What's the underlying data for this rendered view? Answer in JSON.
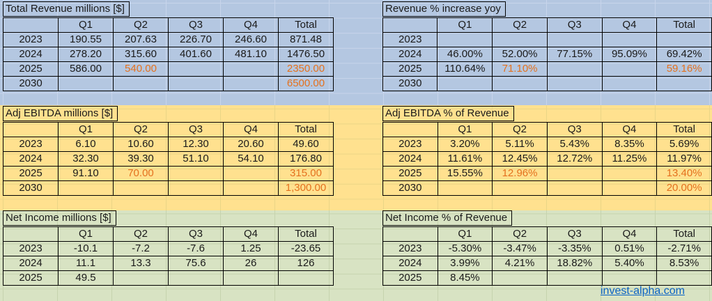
{
  "columns": [
    "",
    "Q1",
    "Q2",
    "Q3",
    "Q4",
    "Total"
  ],
  "colors": {
    "band-blue": "#B4C7E1",
    "grid-blue": "#C8D5EB",
    "band-yellow": "#FFE18F",
    "grid-yellow": "#EAD586",
    "band-green": "#D8E3C3",
    "grid-green": "#C6D3AE",
    "orange": "#E4711E",
    "ink": "#1A1A1A",
    "link": "#0B63C5"
  },
  "link": {
    "text": "invest-alpha.com"
  },
  "tables": [
    {
      "title": "Total Revenue millions [$]",
      "rows": [
        {
          "label": "2023",
          "values": [
            "190.55",
            "207.63",
            "226.70",
            "246.60",
            "871.48"
          ],
          "orange": []
        },
        {
          "label": "2024",
          "values": [
            "278.20",
            "315.60",
            "401.60",
            "481.10",
            "1476.50"
          ],
          "orange": []
        },
        {
          "label": "2025",
          "values": [
            "586.00",
            "540.00",
            "",
            "",
            "2350.00"
          ],
          "orange": [
            1,
            4
          ]
        },
        {
          "label": "2030",
          "values": [
            "",
            "",
            "",
            "",
            "6500.00"
          ],
          "orange": [
            4
          ]
        }
      ]
    },
    {
      "title": "Revenue % increase yoy",
      "rows": [
        {
          "label": "2023",
          "values": [
            "",
            "",
            "",
            "",
            ""
          ],
          "orange": []
        },
        {
          "label": "2024",
          "values": [
            "46.00%",
            "52.00%",
            "77.15%",
            "95.09%",
            "69.42%"
          ],
          "orange": []
        },
        {
          "label": "2025",
          "values": [
            "110.64%",
            "71.10%",
            "",
            "",
            "59.16%"
          ],
          "orange": [
            1,
            4
          ]
        },
        {
          "label": "2030",
          "values": [
            "",
            "",
            "",
            "",
            ""
          ],
          "orange": []
        }
      ]
    },
    {
      "title": "Adj EBITDA millions [$]",
      "rows": [
        {
          "label": "2023",
          "values": [
            "6.10",
            "10.60",
            "12.30",
            "20.60",
            "49.60"
          ],
          "orange": []
        },
        {
          "label": "2024",
          "values": [
            "32.30",
            "39.30",
            "51.10",
            "54.10",
            "176.80"
          ],
          "orange": []
        },
        {
          "label": "2025",
          "values": [
            "91.10",
            "70.00",
            "",
            "",
            "315.00"
          ],
          "orange": [
            1,
            4
          ]
        },
        {
          "label": "2030",
          "values": [
            "",
            "",
            "",
            "",
            "1,300.00"
          ],
          "orange": [
            4
          ]
        }
      ]
    },
    {
      "title": "Adj EBITDA % of Revenue",
      "rows": [
        {
          "label": "2023",
          "values": [
            "3.20%",
            "5.11%",
            "5.43%",
            "8.35%",
            "5.69%"
          ],
          "orange": []
        },
        {
          "label": "2024",
          "values": [
            "11.61%",
            "12.45%",
            "12.72%",
            "11.25%",
            "11.97%"
          ],
          "orange": []
        },
        {
          "label": "2025",
          "values": [
            "15.55%",
            "12.96%",
            "",
            "",
            "13.40%"
          ],
          "orange": [
            1,
            4
          ]
        },
        {
          "label": "2030",
          "values": [
            "",
            "",
            "",
            "",
            "20.00%"
          ],
          "orange": [
            4
          ]
        }
      ]
    },
    {
      "title": "Net Income millions [$]",
      "rows": [
        {
          "label": "2023",
          "values": [
            "-10.1",
            "-7.2",
            "-7.6",
            "1.25",
            "-23.65"
          ],
          "orange": []
        },
        {
          "label": "2024",
          "values": [
            "11.1",
            "13.3",
            "75.6",
            "26",
            "126"
          ],
          "orange": []
        },
        {
          "label": "2025",
          "values": [
            "49.5",
            "",
            "",
            "",
            ""
          ],
          "orange": []
        }
      ]
    },
    {
      "title": "Net Income % of Revenue",
      "rows": [
        {
          "label": "2023",
          "values": [
            "-5.30%",
            "-3.47%",
            "-3.35%",
            "0.51%",
            "-2.71%"
          ],
          "orange": []
        },
        {
          "label": "2024",
          "values": [
            "3.99%",
            "4.21%",
            "18.82%",
            "5.40%",
            "8.53%"
          ],
          "orange": []
        },
        {
          "label": "2025",
          "values": [
            "8.45%",
            "",
            "",
            "",
            ""
          ],
          "orange": []
        }
      ]
    }
  ]
}
